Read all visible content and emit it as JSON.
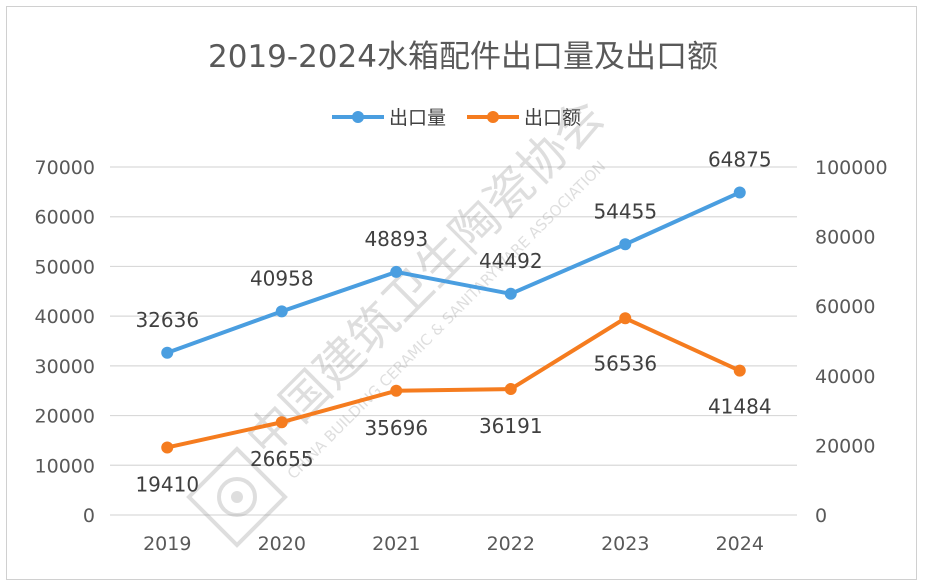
{
  "chart_data": {
    "type": "line",
    "title": "2019-2024水箱配件出口量及出口额",
    "categories": [
      "2019",
      "2020",
      "2021",
      "2022",
      "2023",
      "2024"
    ],
    "series": [
      {
        "name": "出口量",
        "axis": "left",
        "color": "#4a9ee0",
        "values": [
          32636,
          40958,
          48893,
          44492,
          54455,
          64875
        ],
        "labels": [
          "32636",
          "40958",
          "48893",
          "44492",
          "54455",
          "64875"
        ]
      },
      {
        "name": "出口额",
        "axis": "right",
        "color": "#f57c1f",
        "values": [
          19410,
          26655,
          35696,
          36191,
          56536,
          41484
        ],
        "labels": [
          "19410",
          "26655",
          "35696",
          "36191",
          "56536",
          "41484"
        ]
      }
    ],
    "y_left": {
      "min": 0,
      "max": 70000,
      "step": 10000,
      "ticks": [
        "0",
        "10000",
        "20000",
        "30000",
        "40000",
        "50000",
        "60000",
        "70000"
      ]
    },
    "y_right": {
      "min": 0,
      "max": 100000,
      "step": 20000,
      "ticks": [
        "0",
        "20000",
        "40000",
        "60000",
        "80000",
        "100000"
      ]
    },
    "grid": true,
    "legend": "top-center"
  },
  "watermark": {
    "cn": "中国建筑卫生陶瓷协会",
    "en": "CHINA BUILDING CERAMIC & SANITARYWARE ASSOCIATION"
  }
}
